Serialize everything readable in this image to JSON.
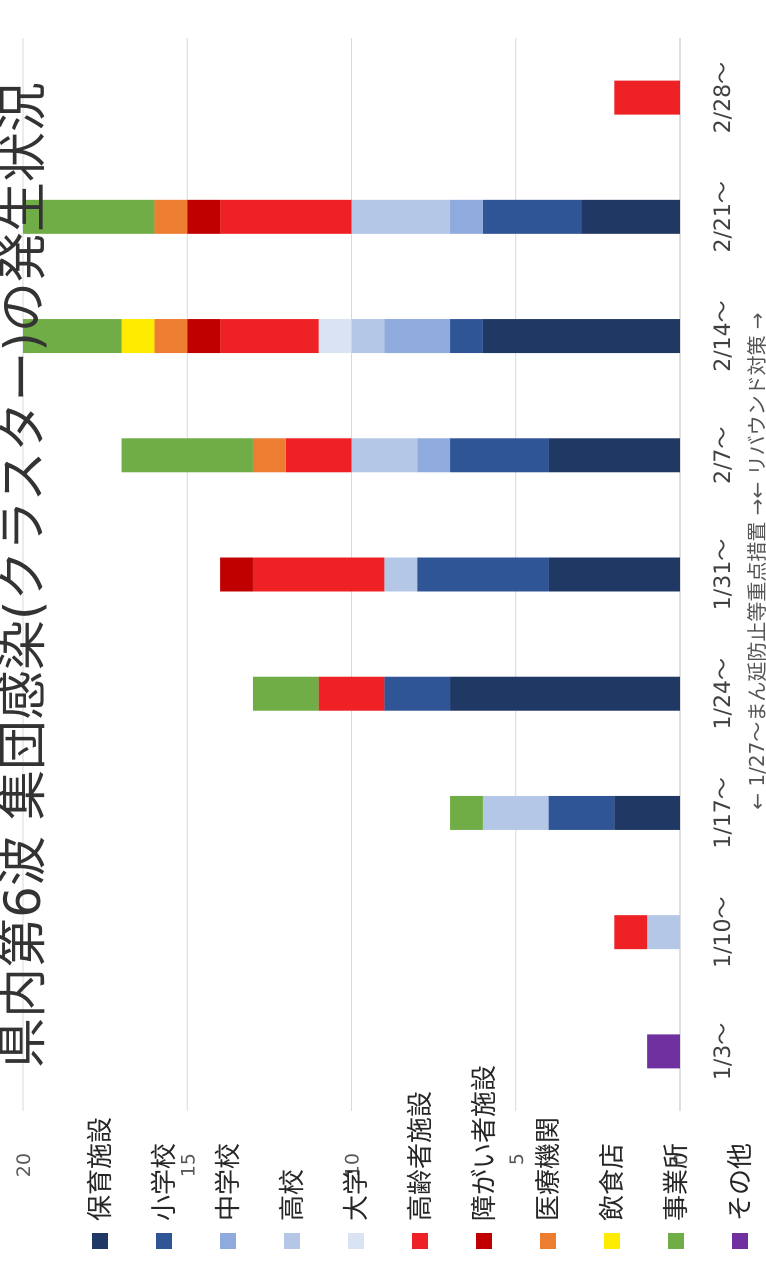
{
  "chart_data": {
    "type": "bar",
    "orientation": "horizontal",
    "stacked": true,
    "title": "県内第6波 集団感染(クラスター)の発生状況",
    "title_visible": "県内第6波 集団感染(クラスター)の発生状況",
    "categories": [
      "1/3〜",
      "1/10〜",
      "1/17〜",
      "1/24〜",
      "1/31〜",
      "2/7〜",
      "2/14〜",
      "2/21〜",
      "2/28〜"
    ],
    "xlim": [
      0,
      20
    ],
    "xticks": [
      "0",
      "5",
      "10",
      "15",
      "20"
    ],
    "grid": true,
    "legend_position": "bottom",
    "annotation": "← 1/27〜まん延防止等重点措置 →← リバウンド対策 →",
    "series": [
      {
        "name": "保育施設",
        "color": "#1F3864",
        "values": [
          0,
          0,
          2,
          7,
          4,
          4,
          6,
          3,
          0
        ]
      },
      {
        "name": "小学校",
        "color": "#2F5597",
        "values": [
          0,
          0,
          2,
          2,
          4,
          3,
          1,
          3,
          0
        ]
      },
      {
        "name": "中学校",
        "color": "#8FAADC",
        "values": [
          0,
          0,
          0,
          0,
          0,
          1,
          2,
          1,
          0
        ]
      },
      {
        "name": "高校",
        "color": "#B4C7E7",
        "values": [
          0,
          1,
          2,
          0,
          1,
          2,
          1,
          3,
          0
        ]
      },
      {
        "name": "大学",
        "color": "#DAE3F3",
        "values": [
          0,
          0,
          0,
          0,
          0,
          0,
          1,
          0,
          0
        ]
      },
      {
        "name": "高齢者施設",
        "color": "#EE2224",
        "values": [
          0,
          1,
          0,
          2,
          4,
          2,
          3,
          4,
          2
        ]
      },
      {
        "name": "障がい者施設",
        "color": "#C00000",
        "values": [
          0,
          0,
          0,
          0,
          1,
          0,
          1,
          1,
          0
        ]
      },
      {
        "name": "医療機関",
        "color": "#ED7D31",
        "values": [
          0,
          0,
          0,
          0,
          0,
          1,
          1,
          1,
          0
        ]
      },
      {
        "name": "飲食店",
        "color": "#FFEB00",
        "values": [
          0,
          0,
          0,
          0,
          0,
          0,
          1,
          0,
          0
        ]
      },
      {
        "name": "事業所",
        "color": "#70AD47",
        "values": [
          0,
          0,
          1,
          2,
          0,
          4,
          3,
          4,
          0
        ]
      },
      {
        "name": "その他",
        "color": "#7030A0",
        "values": [
          1,
          0,
          0,
          0,
          0,
          0,
          0,
          0,
          0
        ]
      }
    ]
  }
}
